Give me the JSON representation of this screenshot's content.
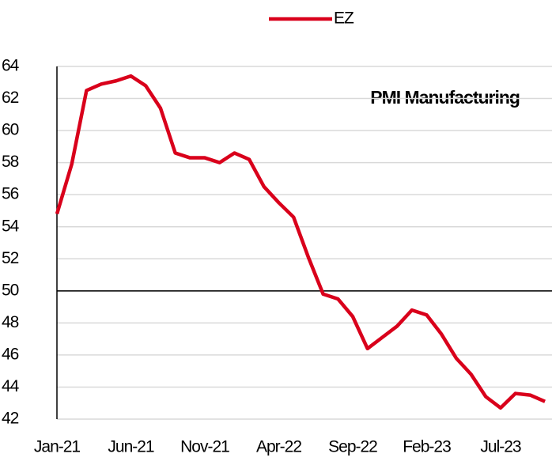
{
  "chart_data": {
    "type": "line",
    "annotation": "PMI Manufacturing",
    "categories": [
      "Jan-21",
      null,
      null,
      null,
      null,
      "Jun-21",
      null,
      null,
      null,
      null,
      "Nov-21",
      null,
      null,
      null,
      null,
      "Apr-22",
      null,
      null,
      null,
      null,
      "Sep-22",
      null,
      null,
      null,
      null,
      "Feb-23",
      null,
      null,
      null,
      null,
      "Jul-23",
      null,
      null,
      null
    ],
    "series": [
      {
        "name": "EZ",
        "color": "#d9001b",
        "values": [
          54.8,
          57.9,
          62.5,
          62.9,
          63.1,
          63.4,
          62.8,
          61.4,
          58.6,
          58.3,
          58.3,
          58.0,
          58.6,
          58.2,
          56.5,
          55.5,
          54.6,
          52.1,
          49.8,
          49.5,
          48.4,
          46.4,
          47.1,
          47.8,
          48.8,
          48.5,
          47.3,
          45.8,
          44.8,
          43.4,
          42.7,
          43.6,
          43.5,
          43.1
        ]
      }
    ],
    "ylim": [
      42,
      64
    ],
    "yticks": [
      42,
      44,
      46,
      48,
      50,
      52,
      54,
      56,
      58,
      60,
      62,
      64
    ],
    "reference_line": 50,
    "grid": true,
    "legend": "top"
  }
}
